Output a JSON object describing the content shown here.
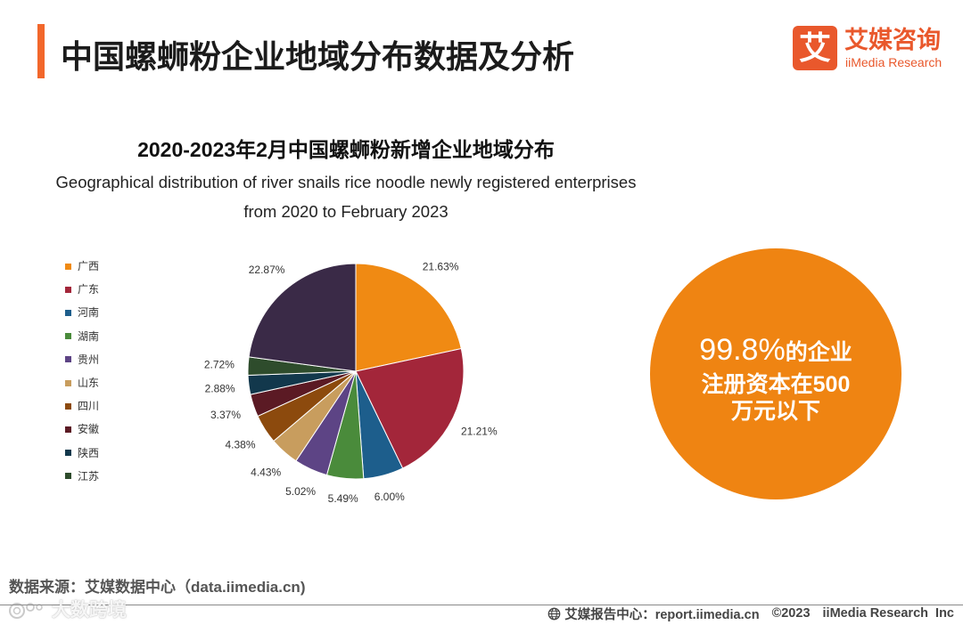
{
  "header": {
    "title": "中国螺蛳粉企业地域分布数据及分析",
    "logo": {
      "mark": "艾",
      "name_cn": "艾媒咨询",
      "name_en": "iiMedia Research"
    }
  },
  "chart_data": {
    "type": "pie",
    "title": "2020-2023年2月中国螺蛳粉新增企业地域分布",
    "subtitle": [
      "Geographical distribution of river snails rice noodle newly registered enterprises",
      "from 2020 to February 2023"
    ],
    "legend_position": "left",
    "slices": [
      {
        "name": "广西",
        "value": 21.63,
        "label": "21.63%",
        "color": "#F08A13"
      },
      {
        "name": "广东",
        "value": 21.21,
        "label": "21.21%",
        "color": "#A3263A"
      },
      {
        "name": "河南",
        "value": 6.0,
        "label": "6.00%",
        "color": "#1D5E8C"
      },
      {
        "name": "湖南",
        "value": 5.49,
        "label": "5.49%",
        "color": "#4A8B3B"
      },
      {
        "name": "贵州",
        "value": 5.02,
        "label": "5.02%",
        "color": "#5D4485"
      },
      {
        "name": "山东",
        "value": 4.43,
        "label": "4.43%",
        "color": "#C89D5E"
      },
      {
        "name": "四川",
        "value": 4.38,
        "label": "4.38%",
        "color": "#8C4A0D"
      },
      {
        "name": "安徽",
        "value": 3.37,
        "label": "3.37%",
        "color": "#5B1A24"
      },
      {
        "name": "陕西",
        "value": 2.88,
        "label": "2.88%",
        "color": "#12384C"
      },
      {
        "name": "江苏",
        "value": 2.72,
        "label": "2.72%",
        "color": "#2E4C2C"
      },
      {
        "name": "",
        "value": 22.87,
        "label": "22.87%",
        "color": "#3A2A47"
      }
    ]
  },
  "callout": {
    "highlight": "99.8%",
    "line1_rest": "的企业",
    "line2": "注册资本在500",
    "line3": "万元以下",
    "color": "#EF8412"
  },
  "footer": {
    "source": "数据来源：艾媒数据中心（data.iimedia.cn)",
    "report_center": "艾媒报告中心：report.iimedia.cn",
    "copyright": "©2023",
    "company": "iiMedia Research  Inc",
    "watermark": "大数跨境",
    "icon": "globe-icon"
  },
  "colors": {
    "accent": "#F2672B",
    "brand": "#E9582C",
    "text": "#1b1b1b"
  }
}
